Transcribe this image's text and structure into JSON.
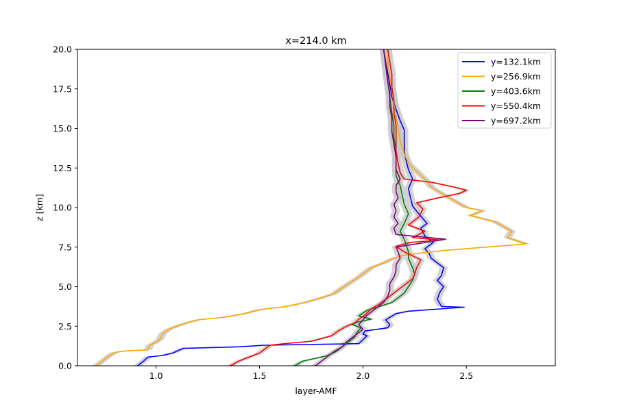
{
  "chart_data": {
    "type": "line",
    "title": "x=214.0 km",
    "xlabel": "layer-AMF",
    "ylabel": "z [km]",
    "xlim": [
      0.62,
      2.93
    ],
    "ylim": [
      0,
      20
    ],
    "xticks": [
      1.0,
      1.5,
      2.0,
      2.5
    ],
    "xtick_labels": [
      "1.0",
      "1.5",
      "2.0",
      "2.5"
    ],
    "yticks": [
      0,
      2.5,
      5,
      7.5,
      10,
      12.5,
      15,
      17.5,
      20
    ],
    "ytick_labels": [
      "0.0",
      "2.5",
      "5.0",
      "7.5",
      "10.0",
      "12.5",
      "15.0",
      "17.5",
      "20.0"
    ],
    "grid": false,
    "legend_position": "top-right",
    "uncertainty_band_color": "#c8c8c8",
    "series": [
      {
        "name": "y=132.1km",
        "color": "#0000ff",
        "points": [
          [
            0.91,
            0
          ],
          [
            0.94,
            0.3
          ],
          [
            0.96,
            0.55
          ],
          [
            1.03,
            0.65
          ],
          [
            1.08,
            0.8
          ],
          [
            1.13,
            1.1
          ],
          [
            1.4,
            1.2
          ],
          [
            1.52,
            1.3
          ],
          [
            1.98,
            1.4
          ],
          [
            2.0,
            1.65
          ],
          [
            2.02,
            1.9
          ],
          [
            2.0,
            2.0
          ],
          [
            2.01,
            2.2
          ],
          [
            2.12,
            2.4
          ],
          [
            2.13,
            2.6
          ],
          [
            2.11,
            2.9
          ],
          [
            2.16,
            3.3
          ],
          [
            2.22,
            3.45
          ],
          [
            2.49,
            3.7
          ],
          [
            2.38,
            3.75
          ],
          [
            2.36,
            4.2
          ],
          [
            2.37,
            4.6
          ],
          [
            2.39,
            5.0
          ],
          [
            2.36,
            5.4
          ],
          [
            2.38,
            5.7
          ],
          [
            2.39,
            6.2
          ],
          [
            2.36,
            6.5
          ],
          [
            2.33,
            6.8
          ],
          [
            2.32,
            7.1
          ],
          [
            2.3,
            7.4
          ],
          [
            2.34,
            7.8
          ],
          [
            2.3,
            8.2
          ],
          [
            2.28,
            8.7
          ],
          [
            2.31,
            9.0
          ],
          [
            2.27,
            9.6
          ],
          [
            2.24,
            10.1
          ],
          [
            2.23,
            10.6
          ],
          [
            2.22,
            11.2
          ],
          [
            2.24,
            11.8
          ],
          [
            2.22,
            12.4
          ],
          [
            2.21,
            12.9
          ],
          [
            2.2,
            13.5
          ],
          [
            2.2,
            14.2
          ],
          [
            2.2,
            14.9
          ],
          [
            2.18,
            15.5
          ],
          [
            2.16,
            16.2
          ],
          [
            2.14,
            17.0
          ],
          [
            2.13,
            17.8
          ],
          [
            2.12,
            18.5
          ],
          [
            2.11,
            19.2
          ],
          [
            2.1,
            20.0
          ]
        ]
      },
      {
        "name": "y=256.9km",
        "color": "#ffa500",
        "points": [
          [
            0.71,
            0
          ],
          [
            0.74,
            0.3
          ],
          [
            0.77,
            0.6
          ],
          [
            0.8,
            0.85
          ],
          [
            0.86,
            0.95
          ],
          [
            0.96,
            1.0
          ],
          [
            0.97,
            1.3
          ],
          [
            1.0,
            1.5
          ],
          [
            1.02,
            1.7
          ],
          [
            1.03,
            2.0
          ],
          [
            1.06,
            2.3
          ],
          [
            1.12,
            2.6
          ],
          [
            1.2,
            2.9
          ],
          [
            1.32,
            3.05
          ],
          [
            1.43,
            3.3
          ],
          [
            1.5,
            3.55
          ],
          [
            1.63,
            3.75
          ],
          [
            1.72,
            4.0
          ],
          [
            1.8,
            4.3
          ],
          [
            1.86,
            4.55
          ],
          [
            1.88,
            4.75
          ],
          [
            1.92,
            5.1
          ],
          [
            1.98,
            5.6
          ],
          [
            2.01,
            5.9
          ],
          [
            2.04,
            6.2
          ],
          [
            2.1,
            6.5
          ],
          [
            2.14,
            6.75
          ],
          [
            2.2,
            7.0
          ],
          [
            2.3,
            7.15
          ],
          [
            2.4,
            7.3
          ],
          [
            2.79,
            7.7
          ],
          [
            2.7,
            8.1
          ],
          [
            2.72,
            8.5
          ],
          [
            2.68,
            8.8
          ],
          [
            2.64,
            9.1
          ],
          [
            2.52,
            9.5
          ],
          [
            2.58,
            9.8
          ],
          [
            2.5,
            10.0
          ],
          [
            2.46,
            10.3
          ],
          [
            2.42,
            10.6
          ],
          [
            2.38,
            10.9
          ],
          [
            2.33,
            11.3
          ],
          [
            2.3,
            11.8
          ],
          [
            2.26,
            12.3
          ],
          [
            2.22,
            12.8
          ],
          [
            2.2,
            13.4
          ],
          [
            2.18,
            14.2
          ],
          [
            2.17,
            15.0
          ],
          [
            2.16,
            15.8
          ],
          [
            2.15,
            16.6
          ],
          [
            2.14,
            17.4
          ],
          [
            2.13,
            18.2
          ],
          [
            2.12,
            19.0
          ],
          [
            2.12,
            20.0
          ]
        ]
      },
      {
        "name": "y=403.6km",
        "color": "#008000",
        "points": [
          [
            1.67,
            0
          ],
          [
            1.71,
            0.3
          ],
          [
            1.78,
            0.5
          ],
          [
            1.83,
            0.65
          ],
          [
            1.87,
            0.9
          ],
          [
            1.9,
            1.2
          ],
          [
            1.93,
            1.5
          ],
          [
            1.96,
            1.8
          ],
          [
            1.97,
            2.1
          ],
          [
            1.99,
            2.4
          ],
          [
            1.95,
            2.6
          ],
          [
            1.97,
            2.75
          ],
          [
            2.04,
            2.95
          ],
          [
            1.98,
            3.15
          ],
          [
            2.02,
            3.5
          ],
          [
            2.08,
            3.75
          ],
          [
            2.14,
            4.0
          ],
          [
            2.17,
            4.3
          ],
          [
            2.2,
            4.6
          ],
          [
            2.22,
            5.0
          ],
          [
            2.24,
            5.4
          ],
          [
            2.25,
            5.8
          ],
          [
            2.24,
            6.2
          ],
          [
            2.22,
            6.8
          ],
          [
            2.22,
            7.2
          ],
          [
            2.21,
            7.6
          ],
          [
            2.2,
            8.0
          ],
          [
            2.18,
            8.5
          ],
          [
            2.2,
            9.0
          ],
          [
            2.22,
            9.6
          ],
          [
            2.2,
            10.2
          ],
          [
            2.19,
            10.8
          ],
          [
            2.18,
            11.4
          ],
          [
            2.16,
            12.0
          ],
          [
            2.16,
            12.8
          ],
          [
            2.16,
            13.6
          ],
          [
            2.15,
            14.4
          ],
          [
            2.15,
            15.2
          ],
          [
            2.14,
            16.0
          ],
          [
            2.13,
            17.0
          ],
          [
            2.12,
            18.0
          ],
          [
            2.11,
            19.0
          ],
          [
            2.1,
            20.0
          ]
        ]
      },
      {
        "name": "y=550.4km",
        "color": "#ff0000",
        "points": [
          [
            1.36,
            0
          ],
          [
            1.4,
            0.3
          ],
          [
            1.45,
            0.55
          ],
          [
            1.5,
            0.8
          ],
          [
            1.52,
            1.0
          ],
          [
            1.55,
            1.3
          ],
          [
            1.62,
            1.4
          ],
          [
            1.75,
            1.55
          ],
          [
            1.85,
            1.9
          ],
          [
            1.88,
            2.2
          ],
          [
            1.92,
            2.5
          ],
          [
            1.96,
            2.7
          ],
          [
            1.98,
            2.95
          ],
          [
            2.01,
            3.2
          ],
          [
            2.04,
            3.6
          ],
          [
            2.08,
            3.9
          ],
          [
            2.12,
            4.3
          ],
          [
            2.16,
            4.7
          ],
          [
            2.2,
            5.1
          ],
          [
            2.24,
            5.5
          ],
          [
            2.25,
            5.8
          ],
          [
            2.26,
            6.2
          ],
          [
            2.28,
            6.7
          ],
          [
            2.2,
            7.2
          ],
          [
            2.16,
            7.55
          ],
          [
            2.23,
            7.8
          ],
          [
            2.38,
            7.95
          ],
          [
            2.24,
            8.1
          ],
          [
            2.3,
            8.5
          ],
          [
            2.22,
            8.9
          ],
          [
            2.27,
            9.4
          ],
          [
            2.29,
            9.9
          ],
          [
            2.26,
            10.3
          ],
          [
            2.36,
            10.6
          ],
          [
            2.47,
            10.9
          ],
          [
            2.5,
            11.1
          ],
          [
            2.44,
            11.3
          ],
          [
            2.33,
            11.6
          ],
          [
            2.2,
            11.8
          ],
          [
            2.18,
            12.2
          ],
          [
            2.17,
            12.8
          ],
          [
            2.16,
            13.6
          ],
          [
            2.16,
            14.4
          ],
          [
            2.16,
            15.2
          ],
          [
            2.15,
            16.0
          ],
          [
            2.15,
            16.8
          ],
          [
            2.14,
            17.6
          ],
          [
            2.14,
            18.4
          ],
          [
            2.13,
            19.2
          ],
          [
            2.12,
            20.0
          ]
        ]
      },
      {
        "name": "y=697.2km",
        "color": "#800080",
        "points": [
          [
            1.77,
            0
          ],
          [
            1.8,
            0.3
          ],
          [
            1.83,
            0.6
          ],
          [
            1.86,
            0.9
          ],
          [
            1.9,
            1.2
          ],
          [
            1.92,
            1.5
          ],
          [
            1.95,
            1.8
          ],
          [
            1.97,
            2.0
          ],
          [
            2.0,
            2.3
          ],
          [
            1.98,
            2.6
          ],
          [
            2.0,
            2.9
          ],
          [
            2.02,
            3.2
          ],
          [
            2.06,
            3.6
          ],
          [
            2.1,
            4.0
          ],
          [
            2.12,
            4.4
          ],
          [
            2.13,
            4.8
          ],
          [
            2.13,
            5.2
          ],
          [
            2.15,
            5.6
          ],
          [
            2.16,
            6.0
          ],
          [
            2.16,
            6.4
          ],
          [
            2.18,
            6.8
          ],
          [
            2.17,
            7.2
          ],
          [
            2.16,
            7.5
          ],
          [
            2.4,
            8.0
          ],
          [
            2.16,
            8.3
          ],
          [
            2.15,
            8.7
          ],
          [
            2.17,
            9.0
          ],
          [
            2.15,
            9.4
          ],
          [
            2.16,
            9.8
          ],
          [
            2.15,
            10.2
          ],
          [
            2.17,
            10.6
          ],
          [
            2.16,
            11.0
          ],
          [
            2.16,
            11.4
          ],
          [
            2.18,
            11.8
          ],
          [
            2.16,
            12.4
          ],
          [
            2.16,
            13.2
          ],
          [
            2.15,
            14.0
          ],
          [
            2.14,
            14.8
          ],
          [
            2.14,
            15.6
          ],
          [
            2.13,
            16.4
          ],
          [
            2.13,
            17.2
          ],
          [
            2.12,
            18.0
          ],
          [
            2.11,
            19.0
          ],
          [
            2.1,
            20.0
          ]
        ]
      }
    ]
  }
}
